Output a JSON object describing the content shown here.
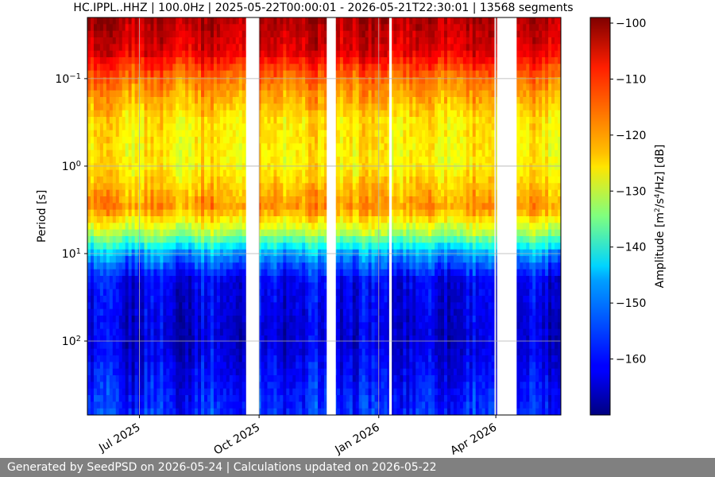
{
  "chart_data": {
    "type": "heatmap",
    "title": "HC.IPPL..HHZ | 100.0Hz | 2025-05-22T00:00:01 - 2026-05-21T22:30:01 | 13568 segments",
    "xlabel": "",
    "ylabel": "Period [s]",
    "colorbar_label_parts": [
      "Amplitude [m",
      "2",
      "/s",
      "4",
      "/Hz] [dB]"
    ],
    "x_range": [
      "2025-05-22",
      "2026-05-21"
    ],
    "x_ticks": [
      {
        "date": "2025-07-01",
        "label": "Jul 2025"
      },
      {
        "date": "2025-10-01",
        "label": "Oct 2025"
      },
      {
        "date": "2026-01-01",
        "label": "Jan 2026"
      },
      {
        "date": "2026-04-01",
        "label": "Apr 2026"
      }
    ],
    "y_scale": "log",
    "y_inverted": true,
    "y_range": [
      0.02,
      700
    ],
    "y_ticks": [
      {
        "value": 0.1,
        "base": "10",
        "exp": "−1"
      },
      {
        "value": 1,
        "base": "10",
        "exp": "0"
      },
      {
        "value": 10,
        "base": "10",
        "exp": "1"
      },
      {
        "value": 100,
        "base": "10",
        "exp": "2"
      }
    ],
    "grid": true,
    "colormap": "jet",
    "color_range": [
      -170,
      -99
    ],
    "colorbar_ticks": [
      -100,
      -110,
      -120,
      -130,
      -140,
      -150,
      -160
    ],
    "period_profile_db": [
      {
        "period": 0.02,
        "db": -102
      },
      {
        "period": 0.05,
        "db": -106
      },
      {
        "period": 0.1,
        "db": -116
      },
      {
        "period": 0.3,
        "db": -124
      },
      {
        "period": 1,
        "db": -125
      },
      {
        "period": 3,
        "db": -118
      },
      {
        "period": 6,
        "db": -132
      },
      {
        "period": 10,
        "db": -150
      },
      {
        "period": 20,
        "db": -162
      },
      {
        "period": 100,
        "db": -164
      },
      {
        "period": 700,
        "db": -158
      }
    ],
    "gaps": [
      {
        "start": "2025-09-21",
        "end": "2025-10-01"
      },
      {
        "start": "2025-11-22",
        "end": "2025-11-29"
      },
      {
        "start": "2026-01-09",
        "end": "2026-01-11"
      },
      {
        "start": "2026-03-31",
        "end": "2026-04-01"
      },
      {
        "start": "2026-04-02",
        "end": "2026-04-17"
      }
    ]
  },
  "footer": {
    "text": "Generated by SeedPSD on 2026-05-24 | Calculations updated on 2026-05-22"
  }
}
